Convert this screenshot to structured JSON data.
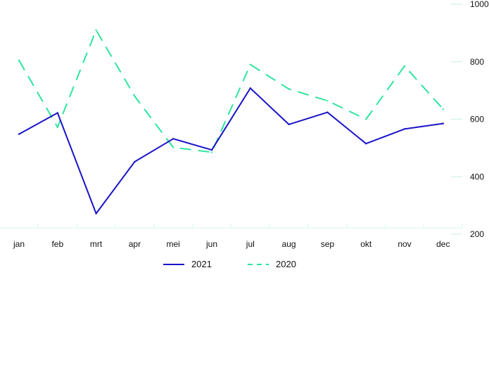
{
  "chart_data": {
    "type": "line",
    "categories": [
      "jan",
      "feb",
      "mrt",
      "apr",
      "mei",
      "jun",
      "jul",
      "aug",
      "sep",
      "okt",
      "nov",
      "dec"
    ],
    "series": [
      {
        "name": "2021",
        "color": "#1a14c8",
        "style": "solid",
        "values": [
          548,
          622,
          272,
          452,
          532,
          493,
          708,
          582,
          624,
          515,
          566,
          585
        ]
      },
      {
        "name": "2020",
        "color": "#2ee59d",
        "style": "dashed",
        "values": [
          805,
          572,
          910,
          680,
          502,
          485,
          790,
          705,
          664,
          600,
          785,
          635
        ]
      }
    ],
    "ylim": [
      200,
      1000
    ],
    "yticks": [
      200,
      400,
      600,
      800,
      1000
    ],
    "y_axis_position": "right",
    "grid": false,
    "legend_position": "bottom-center"
  }
}
